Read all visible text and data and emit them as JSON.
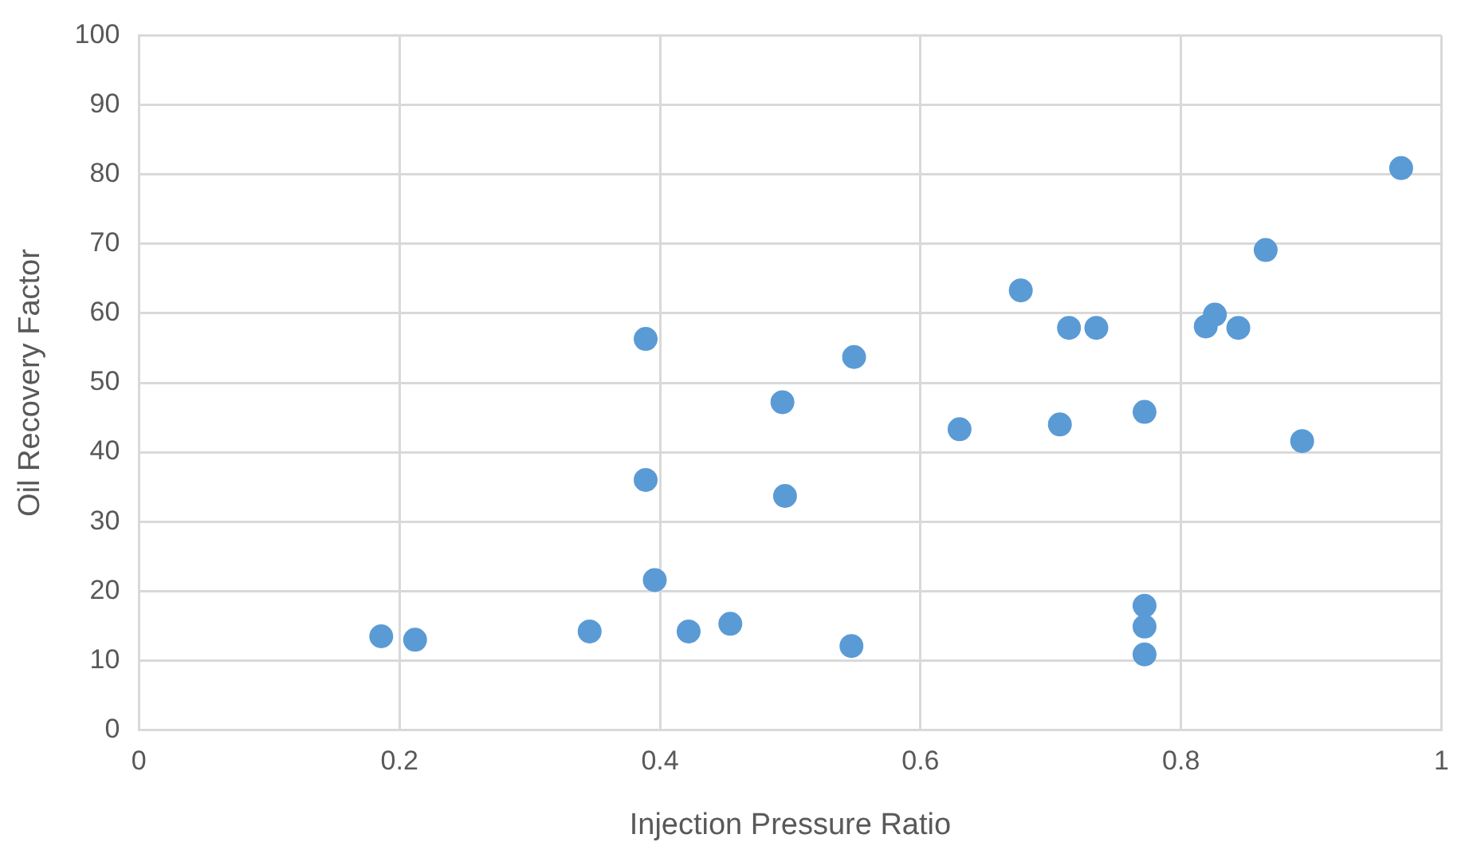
{
  "chart_data": {
    "type": "scatter",
    "xlabel": "Injection Pressure Ratio",
    "ylabel": "Oil Recovery Factor",
    "x": [
      0.186,
      0.212,
      0.346,
      0.389,
      0.396,
      0.422,
      0.454,
      0.547,
      0.496,
      0.389,
      0.494,
      0.549,
      0.969,
      0.865,
      0.677,
      0.714,
      0.735,
      0.819,
      0.826,
      0.844,
      0.63,
      0.707,
      0.772,
      0.893,
      0.772,
      0.772,
      0.772
    ],
    "series": [
      {
        "color": "#5b9bd5",
        "values": [
          13.5,
          13.0,
          14.2,
          36.0,
          21.6,
          14.2,
          15.3,
          12.1,
          33.7,
          56.3,
          47.2,
          53.7,
          80.9,
          69.1,
          63.3,
          57.9,
          57.9,
          58.1,
          59.8,
          57.9,
          43.3,
          44.0,
          45.8,
          41.6,
          17.9,
          14.9,
          10.9
        ]
      }
    ],
    "xlim": [
      0,
      1
    ],
    "xticks": [
      0,
      0.2,
      0.4,
      0.6,
      0.8,
      1
    ],
    "ylim": [
      0,
      100
    ],
    "yticks": [
      0,
      10,
      20,
      30,
      40,
      50,
      60,
      70,
      80,
      90,
      100
    ],
    "grid": true,
    "legend": false,
    "marker": "circle"
  }
}
